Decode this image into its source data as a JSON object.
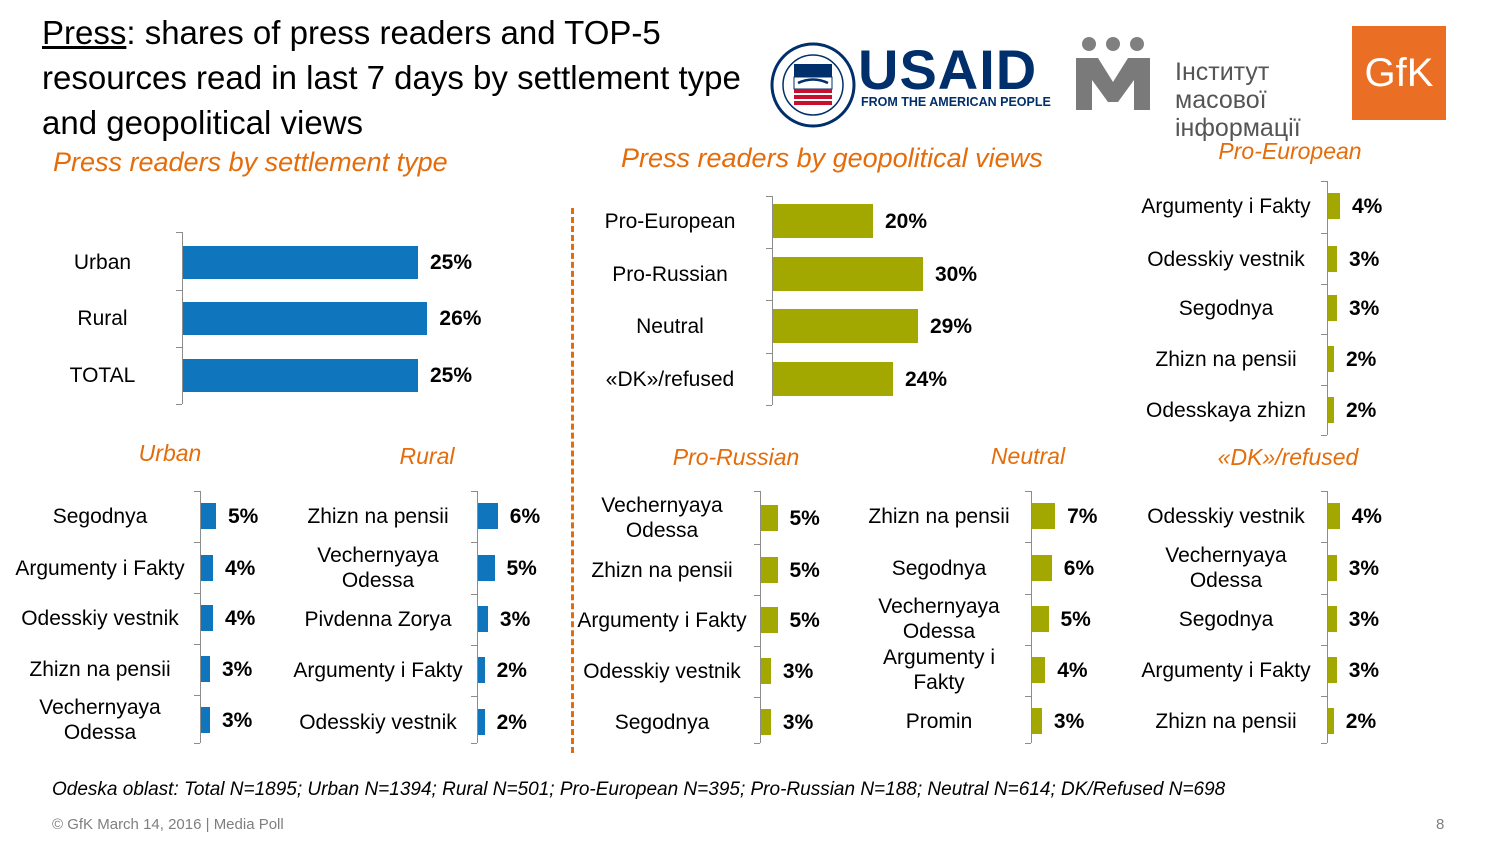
{
  "title": {
    "underlined": "Press",
    "rest": ": shares of press readers and TOP-5 resources read in last 7 days by settlement type and geopolitical views"
  },
  "logos": {
    "usaid_word": "USAID",
    "usaid_tagline": "FROM THE AMERICAN PEOPLE",
    "imi_text": "Інститут масової інформації",
    "gfk": "GfK"
  },
  "colors": {
    "blue": "#0F75BC",
    "olive": "#A3A800",
    "accent": "#E46C0A"
  },
  "section_settlement": "Press readers by settlement type",
  "section_geopolitical": "Press readers by geopolitical views",
  "footnote": "Odeska oblast: Total N=1895; Urban N=1394; Rural N=501; Pro-European N=395; Pro-Russian N=188; Neutral N=614; DK/Refused N=698",
  "footer": "© GfK March 14, 2016 | Media Poll",
  "page_number": "8",
  "chart_data": [
    {
      "id": "settlement",
      "type": "bar",
      "orientation": "horizontal",
      "title": "Press readers by settlement type",
      "categories": [
        "Urban",
        "Rural",
        "TOTAL"
      ],
      "values": [
        25,
        26,
        25
      ],
      "labels": [
        "25%",
        "26%",
        "25%"
      ],
      "color": "blue",
      "unit": "%"
    },
    {
      "id": "geopolitical",
      "type": "bar",
      "orientation": "horizontal",
      "title": "Press readers by geopolitical views",
      "categories": [
        "Pro-European",
        "Pro-Russian",
        "Neutral",
        "«DK»/refused"
      ],
      "values": [
        20,
        30,
        29,
        24
      ],
      "labels": [
        "20%",
        "30%",
        "29%",
        "24%"
      ],
      "color": "olive",
      "unit": "%"
    },
    {
      "id": "pro_european",
      "type": "bar",
      "orientation": "horizontal",
      "title": "Pro-European",
      "categories": [
        "Argumenty i Fakty",
        "Odesskiy vestnik",
        "Segodnya",
        "Zhizn na pensii",
        "Odesskaya zhizn"
      ],
      "values": [
        4,
        3,
        3,
        2,
        2
      ],
      "labels": [
        "4%",
        "3%",
        "3%",
        "2%",
        "2%"
      ],
      "color": "olive",
      "unit": "%"
    },
    {
      "id": "urban",
      "type": "bar",
      "orientation": "horizontal",
      "title": "Urban",
      "categories": [
        "Segodnya",
        "Argumenty i Fakty",
        "Odesskiy vestnik",
        "Zhizn na pensii",
        "Vechernyaya Odessa"
      ],
      "values": [
        5,
        4,
        4,
        3,
        3
      ],
      "labels": [
        "5%",
        "4%",
        "4%",
        "3%",
        "3%"
      ],
      "color": "blue",
      "unit": "%"
    },
    {
      "id": "rural",
      "type": "bar",
      "orientation": "horizontal",
      "title": "Rural",
      "categories": [
        "Zhizn na pensii",
        "Vechernyaya Odessa",
        "Pivdenna Zorya",
        "Argumenty i Fakty",
        "Odesskiy vestnik"
      ],
      "values": [
        6,
        5,
        3,
        2,
        2
      ],
      "labels": [
        "6%",
        "5%",
        "3%",
        "2%",
        "2%"
      ],
      "color": "blue",
      "unit": "%"
    },
    {
      "id": "pro_russian",
      "type": "bar",
      "orientation": "horizontal",
      "title": "Pro-Russian",
      "categories": [
        "Vechernyaya Odessa",
        "Zhizn na pensii",
        "Argumenty i Fakty",
        "Odesskiy vestnik",
        "Segodnya"
      ],
      "values": [
        5,
        5,
        5,
        3,
        3
      ],
      "labels": [
        "5%",
        "5%",
        "5%",
        "3%",
        "3%"
      ],
      "color": "olive",
      "unit": "%"
    },
    {
      "id": "neutral",
      "type": "bar",
      "orientation": "horizontal",
      "title": "Neutral",
      "categories": [
        "Zhizn na pensii",
        "Segodnya",
        "Vechernyaya Odessa",
        "Argumenty i Fakty",
        "Promin"
      ],
      "values": [
        7,
        6,
        5,
        4,
        3
      ],
      "labels": [
        "7%",
        "6%",
        "5%",
        "4%",
        "3%"
      ],
      "color": "olive",
      "unit": "%"
    },
    {
      "id": "dk_refused",
      "type": "bar",
      "orientation": "horizontal",
      "title": "«DK»/refused",
      "categories": [
        "Odesskiy vestnik",
        "Vechernyaya Odessa",
        "Segodnya",
        "Argumenty i Fakty",
        "Zhizn na pensii"
      ],
      "values": [
        4,
        3,
        3,
        3,
        2
      ],
      "labels": [
        "4%",
        "3%",
        "3%",
        "3%",
        "2%"
      ],
      "color": "olive",
      "unit": "%"
    }
  ]
}
